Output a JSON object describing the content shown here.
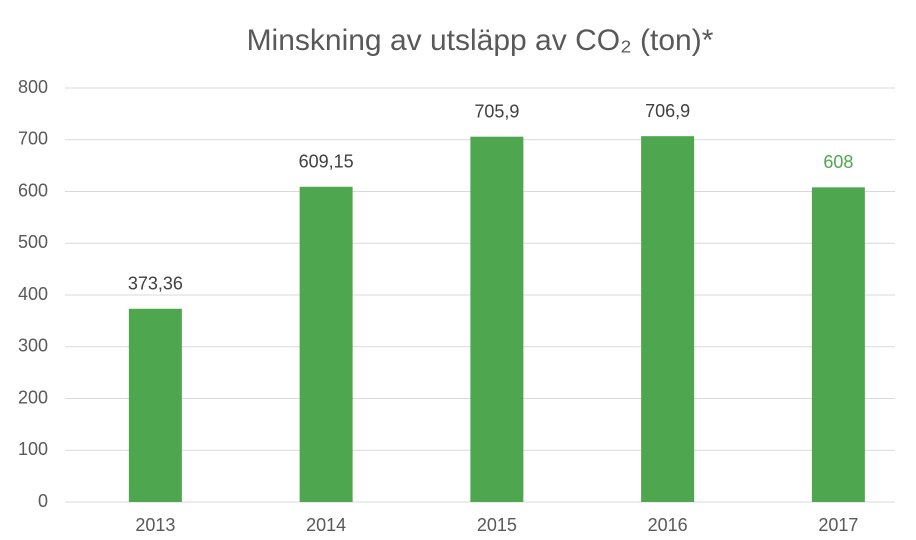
{
  "chart_data": {
    "type": "bar",
    "title": "Minskning av utsläpp av CO₂ (ton)*",
    "categories": [
      "2013",
      "2014",
      "2015",
      "2016",
      "2017"
    ],
    "values": [
      373.36,
      609.15,
      705.9,
      706.9,
      608
    ],
    "value_labels": [
      "373,36",
      "609,15",
      "705,9",
      "706,9",
      "608"
    ],
    "value_label_colors": [
      "#404040",
      "#404040",
      "#404040",
      "#404040",
      "#4ea74f"
    ],
    "color": "#4ea74f",
    "ylim": [
      0,
      800
    ],
    "yticks": [
      0,
      100,
      200,
      300,
      400,
      500,
      600,
      700,
      800
    ],
    "grid": true
  }
}
